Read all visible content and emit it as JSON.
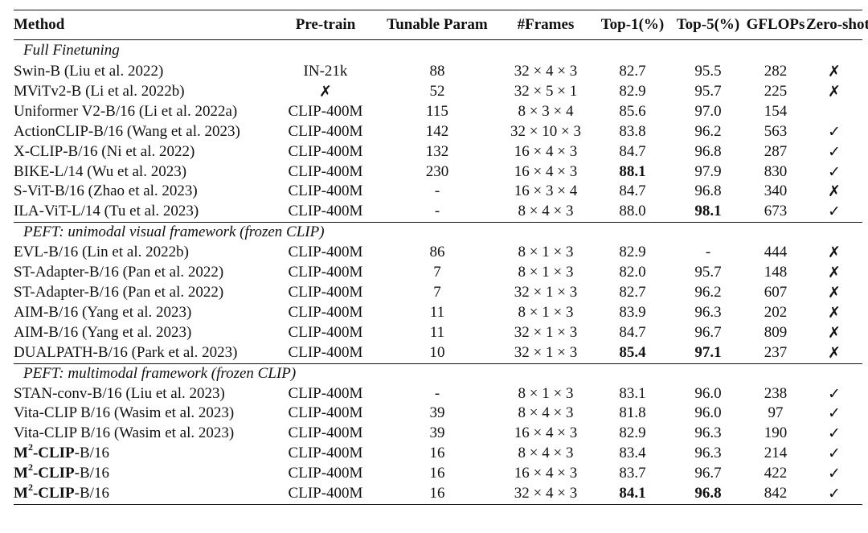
{
  "columns": [
    "Method",
    "Pre-train",
    "Tunable Param",
    "#Frames",
    "Top-1(%)",
    "Top-5(%)",
    "GFLOPs",
    "Zero-shot"
  ],
  "sections": [
    {
      "title": "Full Finetuning",
      "rows": [
        {
          "method": "Swin-B (Liu et al. 2022)",
          "pretrain": "IN-21k",
          "param": "88",
          "frames": "32 × 4 × 3",
          "top1": "82.7",
          "top5": "95.5",
          "gflops": "282",
          "zs": "✗"
        },
        {
          "method": "MViTv2-B (Li et al. 2022b)",
          "pretrain": "✗",
          "param": "52",
          "frames": "32 × 5 × 1",
          "top1": "82.9",
          "top5": "95.7",
          "gflops": "225",
          "zs": "✗"
        },
        {
          "method": "Uniformer V2-B/16 (Li et al. 2022a)",
          "pretrain": "CLIP-400M",
          "param": "115",
          "frames": "8 × 3 × 4",
          "top1": "85.6",
          "top5": "97.0",
          "gflops": "154",
          "zs": ""
        },
        {
          "method": "ActionCLIP-B/16 (Wang et al. 2023)",
          "pretrain": "CLIP-400M",
          "param": "142",
          "frames": "32 × 10 × 3",
          "top1": "83.8",
          "top5": "96.2",
          "gflops": "563",
          "zs": "✓"
        },
        {
          "method": "X-CLIP-B/16 (Ni et al. 2022)",
          "pretrain": "CLIP-400M",
          "param": "132",
          "frames": "16 × 4 × 3",
          "top1": "84.7",
          "top5": "96.8",
          "gflops": "287",
          "zs": "✓"
        },
        {
          "method": "BIKE-L/14 (Wu et al. 2023)",
          "pretrain": "CLIP-400M",
          "param": "230",
          "frames": "16 × 4 × 3",
          "top1": "88.1",
          "top1_bold": true,
          "top5": "97.9",
          "gflops": "830",
          "zs": "✓"
        },
        {
          "method": "S-ViT-B/16 (Zhao et al. 2023)",
          "pretrain": "CLIP-400M",
          "param": "-",
          "frames": "16 × 3 × 4",
          "top1": "84.7",
          "top5": "96.8",
          "gflops": "340",
          "zs": "✗"
        },
        {
          "method": "ILA-ViT-L/14 (Tu et al. 2023)",
          "pretrain": "CLIP-400M",
          "param": "-",
          "frames": "8 × 4 × 3",
          "top1": "88.0",
          "top5": "98.1",
          "top5_bold": true,
          "gflops": "673",
          "zs": "✓"
        }
      ]
    },
    {
      "title": "PEFT: unimodal visual framework (frozen CLIP)",
      "rows": [
        {
          "method": "EVL-B/16 (Lin et al. 2022b)",
          "pretrain": "CLIP-400M",
          "param": "86",
          "frames": "8 × 1 × 3",
          "top1": "82.9",
          "top5": "-",
          "gflops": "444",
          "zs": "✗"
        },
        {
          "method": "ST-Adapter-B/16 (Pan et al. 2022)",
          "pretrain": "CLIP-400M",
          "param": "7",
          "frames": "8 × 1 × 3",
          "top1": "82.0",
          "top5": "95.7",
          "gflops": "148",
          "zs": "✗"
        },
        {
          "method": "ST-Adapter-B/16 (Pan et al. 2022)",
          "pretrain": "CLIP-400M",
          "param": "7",
          "frames": "32 × 1 × 3",
          "top1": "82.7",
          "top5": "96.2",
          "gflops": "607",
          "zs": "✗"
        },
        {
          "method": "AIM-B/16 (Yang et al. 2023)",
          "pretrain": "CLIP-400M",
          "param": "11",
          "frames": "8 × 1 × 3",
          "top1": "83.9",
          "top5": "96.3",
          "gflops": "202",
          "zs": "✗"
        },
        {
          "method": "AIM-B/16 (Yang et al. 2023)",
          "pretrain": "CLIP-400M",
          "param": "11",
          "frames": "32 × 1 × 3",
          "top1": "84.7",
          "top5": "96.7",
          "gflops": "809",
          "zs": "✗"
        },
        {
          "method": "DUALPATH-B/16 (Park et al. 2023)",
          "pretrain": "CLIP-400M",
          "param": "10",
          "frames": "32 × 1 × 3",
          "top1": "85.4",
          "top1_bold": true,
          "top5": "97.1",
          "top5_bold": true,
          "gflops": "237",
          "zs": "✗"
        }
      ]
    },
    {
      "title": "PEFT: multimodal framework (frozen CLIP)",
      "rows": [
        {
          "method": "STAN-conv-B/16 (Liu et al. 2023)",
          "pretrain": "CLIP-400M",
          "param": "-",
          "frames": "8 × 1 × 3",
          "top1": "83.1",
          "top5": "96.0",
          "gflops": "238",
          "zs": "✓"
        },
        {
          "method": "Vita-CLIP B/16 (Wasim et al. 2023)",
          "pretrain": "CLIP-400M",
          "param": "39",
          "frames": "8 × 4 × 3",
          "top1": "81.8",
          "top5": "96.0",
          "gflops": "97",
          "zs": "✓"
        },
        {
          "method": "Vita-CLIP B/16 (Wasim et al. 2023)",
          "pretrain": "CLIP-400M",
          "param": "39",
          "frames": "16 × 4 × 3",
          "top1": "82.9",
          "top5": "96.3",
          "gflops": "190",
          "zs": "✓"
        },
        {
          "method_ours": {
            "base": "M",
            "sup": "2",
            "rest": "-CLIP",
            "suffix": "-B/16"
          },
          "pretrain": "CLIP-400M",
          "param": "16",
          "frames": "8 × 4 × 3",
          "top1": "83.4",
          "top5": "96.3",
          "gflops": "214",
          "zs": "✓"
        },
        {
          "method_ours": {
            "base": "M",
            "sup": "2",
            "rest": "-CLIP",
            "suffix": "-B/16"
          },
          "pretrain": "CLIP-400M",
          "param": "16",
          "frames": "16 × 4 × 3",
          "top1": "83.7",
          "top5": "96.7",
          "gflops": "422",
          "zs": "✓"
        },
        {
          "method_ours": {
            "base": "M",
            "sup": "2",
            "rest": "-CLIP",
            "suffix": "-B/16"
          },
          "pretrain": "CLIP-400M",
          "param": "16",
          "frames": "32 × 4 × 3",
          "top1": "84.1",
          "top1_bold": true,
          "top5": "96.8",
          "top5_bold": true,
          "gflops": "842",
          "zs": "✓"
        }
      ]
    }
  ]
}
